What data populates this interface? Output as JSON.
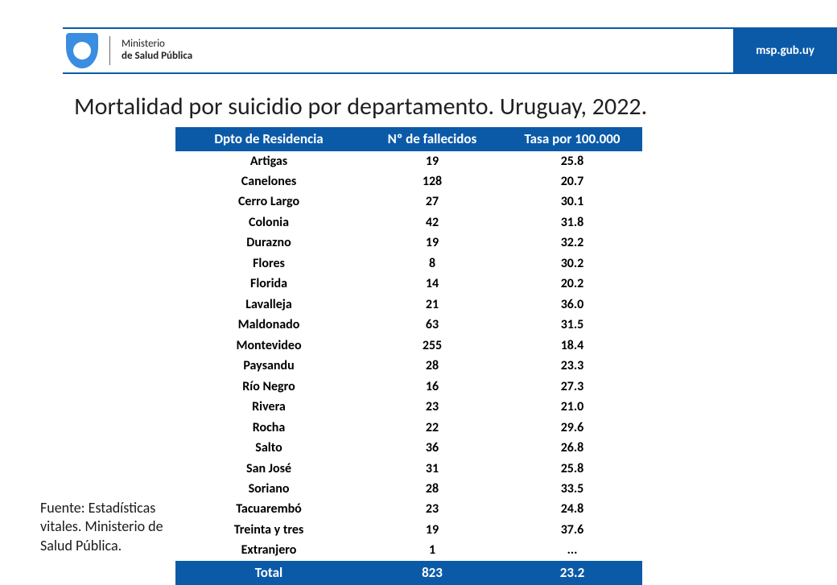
{
  "header": {
    "ministry_line1": "Ministerio",
    "ministry_line2": "de Salud Pública",
    "url": "msp.gub.uy"
  },
  "title": "Mortalidad por suicidio por departamento. Uruguay, 2022.",
  "table": {
    "columns": [
      "Dpto de Residencia",
      "Nº de fallecidos",
      "Tasa por 100.000"
    ],
    "rows": [
      [
        "Artigas",
        "19",
        "25.8"
      ],
      [
        "Canelones",
        "128",
        "20.7"
      ],
      [
        "Cerro Largo",
        "27",
        "30.1"
      ],
      [
        "Colonia",
        "42",
        "31.8"
      ],
      [
        "Durazno",
        "19",
        "32.2"
      ],
      [
        "Flores",
        "8",
        "30.2"
      ],
      [
        "Florida",
        "14",
        "20.2"
      ],
      [
        "Lavalleja",
        "21",
        "36.0"
      ],
      [
        "Maldonado",
        "63",
        "31.5"
      ],
      [
        "Montevideo",
        "255",
        "18.4"
      ],
      [
        "Paysandu",
        "28",
        "23.3"
      ],
      [
        "Río Negro",
        "16",
        "27.3"
      ],
      [
        "Rivera",
        "23",
        "21.0"
      ],
      [
        "Rocha",
        "22",
        "29.6"
      ],
      [
        "Salto",
        "36",
        "26.8"
      ],
      [
        "San José",
        "31",
        "25.8"
      ],
      [
        "Soriano",
        "28",
        "33.5"
      ],
      [
        "Tacuarembó",
        "23",
        "24.8"
      ],
      [
        "Treinta y tres",
        "19",
        "37.6"
      ],
      [
        "Extranjero",
        "1",
        "..."
      ]
    ],
    "total_row": [
      "Total",
      "823",
      "23.2"
    ],
    "header_bg": "#0b5aa8",
    "header_fg": "#ffffff",
    "body_fg": "#000000",
    "font_size_header": 17,
    "font_size_body": 16
  },
  "source": "Fuente: Estadísticas vitales. Ministerio de Salud Pública.",
  "colors": {
    "brand_blue": "#0b5aa8",
    "logo_blue": "#3a8de0",
    "background": "#ffffff",
    "text": "#202020"
  }
}
